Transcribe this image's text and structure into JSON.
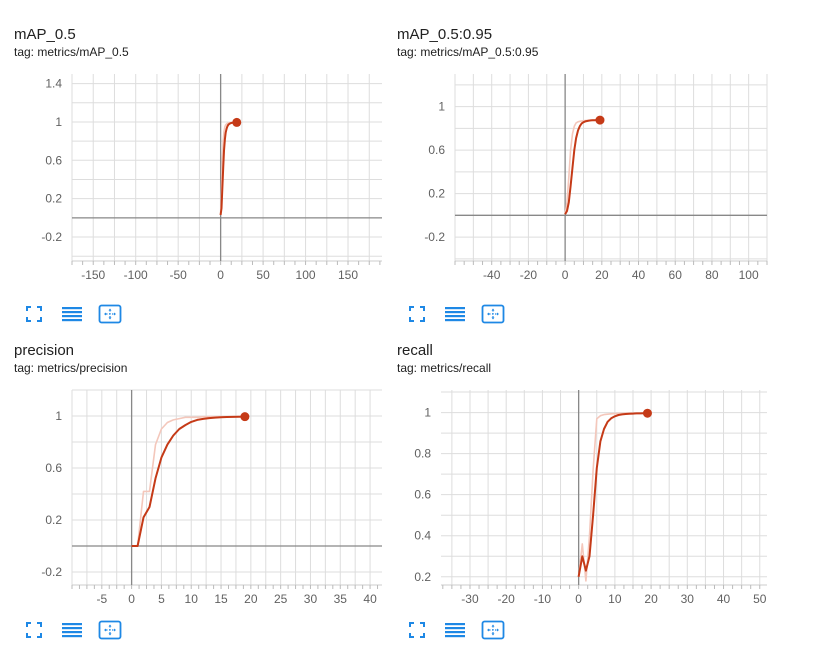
{
  "colors": {
    "smoothed": "#c53a17",
    "raw": "#f4c7bb",
    "grid": "#dddddd",
    "axis": "#888888",
    "icon": "#1e88e5"
  },
  "icons": [
    "fullscreen-icon",
    "toggle-y-log-icon",
    "fit-domain-icon"
  ],
  "chart_data": [
    {
      "type": "line",
      "title": "mAP_0.5",
      "tag": "tag: metrics/mAP_0.5",
      "xlim": [
        -175,
        190
      ],
      "ylim": [
        -0.45,
        1.5
      ],
      "xticks": [
        -150,
        -100,
        -50,
        0,
        50,
        100,
        150
      ],
      "yticks": [
        -0.2,
        0.2,
        0.6,
        1,
        1.4
      ],
      "series": [
        {
          "role": "raw",
          "x": [
            0,
            1,
            2,
            3,
            4,
            5,
            6,
            7,
            8,
            9,
            10,
            11,
            12,
            13,
            14,
            15,
            16,
            17,
            18,
            19
          ],
          "y": [
            0.03,
            0.3,
            0.6,
            0.8,
            0.9,
            0.95,
            0.97,
            0.98,
            0.985,
            0.99,
            0.99,
            0.992,
            0.993,
            0.994,
            0.994,
            0.995,
            0.995,
            0.995,
            0.995,
            0.995
          ]
        },
        {
          "role": "smoothed",
          "x": [
            0,
            1,
            2,
            3,
            4,
            5,
            6,
            7,
            8,
            9,
            10,
            11,
            12,
            13,
            14,
            15,
            16,
            17,
            18,
            19
          ],
          "y": [
            0.03,
            0.1,
            0.3,
            0.52,
            0.7,
            0.82,
            0.89,
            0.93,
            0.955,
            0.97,
            0.978,
            0.984,
            0.988,
            0.99,
            0.991,
            0.992,
            0.993,
            0.994,
            0.995,
            0.995
          ]
        }
      ]
    },
    {
      "type": "line",
      "title": "mAP_0.5:0.95",
      "tag": "tag: metrics/mAP_0.5:0.95",
      "xlim": [
        -60,
        110
      ],
      "ylim": [
        -0.42,
        1.3
      ],
      "xticks": [
        -40,
        -20,
        0,
        20,
        40,
        60,
        80,
        100
      ],
      "yticks": [
        -0.2,
        0.2,
        0.6,
        1
      ],
      "series": [
        {
          "role": "raw",
          "x": [
            0,
            1,
            2,
            3,
            4,
            5,
            6,
            7,
            8,
            9,
            10,
            11,
            12,
            13,
            14,
            15,
            16,
            17,
            18,
            19
          ],
          "y": [
            0.01,
            0.12,
            0.35,
            0.6,
            0.75,
            0.82,
            0.85,
            0.86,
            0.865,
            0.868,
            0.87,
            0.872,
            0.873,
            0.874,
            0.875,
            0.876,
            0.876,
            0.877,
            0.877,
            0.877
          ]
        },
        {
          "role": "smoothed",
          "x": [
            0,
            1,
            2,
            3,
            4,
            5,
            6,
            7,
            8,
            9,
            10,
            11,
            12,
            13,
            14,
            15,
            16,
            17,
            18,
            19
          ],
          "y": [
            0.01,
            0.04,
            0.12,
            0.27,
            0.44,
            0.6,
            0.71,
            0.78,
            0.82,
            0.845,
            0.857,
            0.864,
            0.868,
            0.871,
            0.873,
            0.874,
            0.875,
            0.876,
            0.876,
            0.876
          ]
        }
      ]
    },
    {
      "type": "line",
      "title": "precision",
      "tag": "tag: metrics/precision",
      "xlim": [
        -10,
        42
      ],
      "ylim": [
        -0.3,
        1.2
      ],
      "xticks": [
        -5,
        0,
        5,
        10,
        15,
        20,
        25,
        30,
        35,
        40
      ],
      "yticks": [
        -0.2,
        0.2,
        0.6,
        1
      ],
      "series": [
        {
          "role": "raw",
          "x": [
            0,
            1,
            2,
            3,
            4,
            5,
            6,
            7,
            8,
            9,
            10,
            11,
            12,
            13,
            14,
            15,
            16,
            17,
            18,
            19
          ],
          "y": [
            0,
            0,
            0.42,
            0.42,
            0.78,
            0.9,
            0.95,
            0.97,
            0.98,
            0.99,
            0.99,
            0.99,
            0.995,
            0.995,
            0.995,
            0.995,
            0.995,
            0.995,
            0.995,
            0.995
          ]
        },
        {
          "role": "smoothed",
          "x": [
            0,
            1,
            2,
            3,
            4,
            5,
            6,
            7,
            8,
            9,
            10,
            11,
            12,
            13,
            14,
            15,
            16,
            17,
            18,
            19
          ],
          "y": [
            0,
            0,
            0.22,
            0.3,
            0.52,
            0.68,
            0.78,
            0.85,
            0.9,
            0.93,
            0.955,
            0.97,
            0.978,
            0.984,
            0.988,
            0.99,
            0.992,
            0.993,
            0.994,
            0.995
          ]
        }
      ]
    },
    {
      "type": "line",
      "title": "recall",
      "tag": "tag: metrics/recall",
      "xlim": [
        -38,
        52
      ],
      "ylim": [
        0.16,
        1.11
      ],
      "xticks": [
        -30,
        -20,
        -10,
        0,
        10,
        20,
        30,
        40,
        50
      ],
      "yticks": [
        0.2,
        0.4,
        0.6,
        0.8,
        1
      ],
      "series": [
        {
          "role": "raw",
          "x": [
            0,
            1,
            2,
            3,
            4,
            5,
            6,
            7,
            8,
            9,
            10,
            11,
            12,
            13,
            14,
            15,
            16,
            17,
            18,
            19
          ],
          "y": [
            0.2,
            0.36,
            0.18,
            0.4,
            0.72,
            0.97,
            0.985,
            0.99,
            0.992,
            0.994,
            0.995,
            0.996,
            0.996,
            0.997,
            0.997,
            0.997,
            0.997,
            0.997,
            0.997,
            0.997
          ]
        },
        {
          "role": "smoothed",
          "x": [
            0,
            1,
            2,
            3,
            4,
            5,
            6,
            7,
            8,
            9,
            10,
            11,
            12,
            13,
            14,
            15,
            16,
            17,
            18,
            19
          ],
          "y": [
            0.2,
            0.3,
            0.23,
            0.3,
            0.5,
            0.73,
            0.86,
            0.92,
            0.955,
            0.972,
            0.982,
            0.988,
            0.991,
            0.993,
            0.994,
            0.995,
            0.996,
            0.996,
            0.997,
            0.997
          ]
        }
      ]
    }
  ]
}
